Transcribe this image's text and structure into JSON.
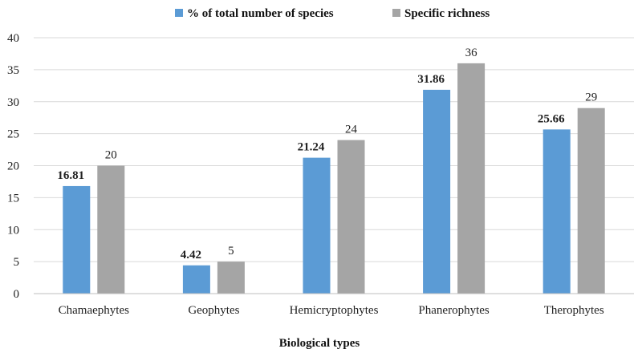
{
  "chart_data": {
    "type": "bar",
    "categories": [
      "Chamaephytes",
      "Geophytes",
      "Hemicryptophytes",
      "Phanerophytes",
      "Therophytes"
    ],
    "series": [
      {
        "name": "% of total number of species",
        "values": [
          16.81,
          4.42,
          21.24,
          31.86,
          25.66
        ],
        "labels": [
          "16.81",
          "4.42",
          "21.24",
          "31.86",
          "25.66"
        ],
        "color": "#5B9BD5",
        "label_bold": true
      },
      {
        "name": "Specific richness",
        "values": [
          20,
          5,
          24,
          36,
          29
        ],
        "labels": [
          "20",
          "5",
          "24",
          "36",
          "29"
        ],
        "color": "#A5A5A5",
        "label_bold": false
      }
    ],
    "title": "",
    "xlabel": "Biological types",
    "ylabel": "",
    "ylim": [
      0,
      40
    ],
    "yticks": [
      0,
      5,
      10,
      15,
      20,
      25,
      30,
      35,
      40
    ],
    "ytick_labels": [
      "0",
      "5",
      "10",
      "15",
      "20",
      "25",
      "30",
      "35",
      "40"
    ],
    "grid": true,
    "legend_position": "top-center",
    "colors": {
      "grid": "#D9D9D9",
      "axis": "#BFBFBF"
    }
  }
}
